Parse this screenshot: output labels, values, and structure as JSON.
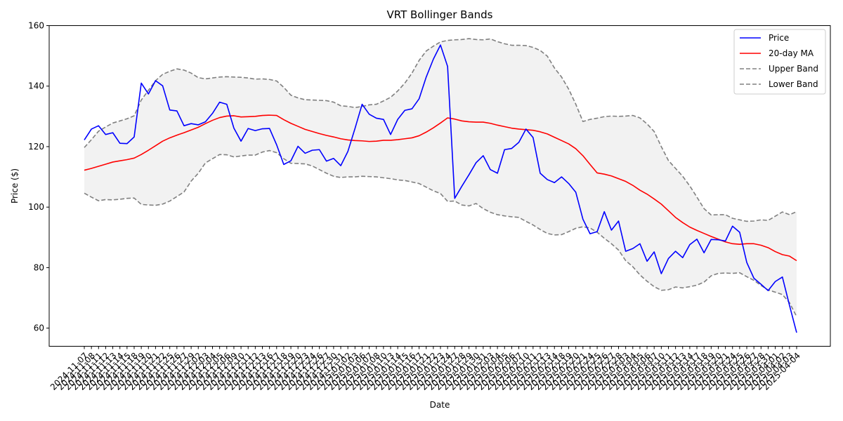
{
  "chart_data": {
    "type": "line",
    "title": "VRT Bollinger Bands",
    "xlabel": "Date",
    "ylabel": "Price ($)",
    "ylim": [
      54,
      160
    ],
    "yticks": [
      60,
      80,
      100,
      120,
      140,
      160
    ],
    "grid": false,
    "legend_position": "top-right",
    "x": [
      "2024-11-07",
      "2024-11-08",
      "2024-11-11",
      "2024-11-12",
      "2024-11-13",
      "2024-11-14",
      "2024-11-15",
      "2024-11-18",
      "2024-11-19",
      "2024-11-20",
      "2024-11-21",
      "2024-11-22",
      "2024-11-25",
      "2024-11-26",
      "2024-11-27",
      "2024-11-29",
      "2024-12-02",
      "2024-12-03",
      "2024-12-04",
      "2024-12-05",
      "2024-12-06",
      "2024-12-09",
      "2024-12-10",
      "2024-12-11",
      "2024-12-12",
      "2024-12-13",
      "2024-12-16",
      "2024-12-17",
      "2024-12-18",
      "2024-12-19",
      "2024-12-20",
      "2024-12-23",
      "2024-12-24",
      "2024-12-26",
      "2024-12-27",
      "2024-12-30",
      "2024-12-31",
      "2025-01-02",
      "2025-01-03",
      "2025-01-06",
      "2025-01-07",
      "2025-01-08",
      "2025-01-10",
      "2025-01-13",
      "2025-01-14",
      "2025-01-15",
      "2025-01-16",
      "2025-01-17",
      "2025-01-21",
      "2025-01-22",
      "2025-01-23",
      "2025-01-24",
      "2025-01-27",
      "2025-01-28",
      "2025-01-29",
      "2025-01-30",
      "2025-01-31",
      "2025-02-03",
      "2025-02-04",
      "2025-02-05",
      "2025-02-06",
      "2025-02-07",
      "2025-02-10",
      "2025-02-11",
      "2025-02-12",
      "2025-02-13",
      "2025-02-14",
      "2025-02-18",
      "2025-02-19",
      "2025-02-20",
      "2025-02-21",
      "2025-02-24",
      "2025-02-25",
      "2025-02-26",
      "2025-02-27",
      "2025-02-28",
      "2025-03-03",
      "2025-03-04",
      "2025-03-05",
      "2025-03-06",
      "2025-03-07",
      "2025-03-10",
      "2025-03-11",
      "2025-03-12",
      "2025-03-13",
      "2025-03-14",
      "2025-03-17",
      "2025-03-18",
      "2025-03-19",
      "2025-03-20",
      "2025-03-21",
      "2025-03-24",
      "2025-03-25",
      "2025-03-26",
      "2025-03-27",
      "2025-03-28",
      "2025-03-31",
      "2025-04-01",
      "2025-04-02",
      "2025-04-03",
      "2025-04-04"
    ],
    "series": [
      {
        "name": "Price",
        "color": "#0000ff",
        "style": "solid",
        "values": [
          122.2,
          125.8,
          126.9,
          124.0,
          124.6,
          121.1,
          121.0,
          123.2,
          141.0,
          137.4,
          141.8,
          140.1,
          132.1,
          131.8,
          126.9,
          127.6,
          127.2,
          128.2,
          131.0,
          134.7,
          134.0,
          126.1,
          121.8,
          126.0,
          125.3,
          125.9,
          126.0,
          120.6,
          114.1,
          115.3,
          120.1,
          117.8,
          118.8,
          119.0,
          115.2,
          116.1,
          113.7,
          118.4,
          126.0,
          134.0,
          130.7,
          129.4,
          129.0,
          124.0,
          129.0,
          132.0,
          132.5,
          135.8,
          143.0,
          148.9,
          153.6,
          146.5,
          102.9,
          106.9,
          110.7,
          114.7,
          117.0,
          112.4,
          111.2,
          119.0,
          119.4,
          121.4,
          125.8,
          123.0,
          111.2,
          109.1,
          108.1,
          110.0,
          107.8,
          104.9,
          96.0,
          91.2,
          91.9,
          98.5,
          92.4,
          95.4,
          85.4,
          86.3,
          87.9,
          82.1,
          85.2,
          78.0,
          83.0,
          85.4,
          83.3,
          87.6,
          89.4,
          84.9,
          89.3,
          89.2,
          88.8,
          93.7,
          91.7,
          81.7,
          76.5,
          74.5,
          72.4,
          75.4,
          76.9,
          67.5,
          58.5
        ]
      },
      {
        "name": "20-day MA",
        "color": "#ff0000",
        "style": "solid",
        "values": [
          112.2,
          112.8,
          113.5,
          114.2,
          114.9,
          115.3,
          115.7,
          116.2,
          117.4,
          118.8,
          120.3,
          121.8,
          122.9,
          123.8,
          124.6,
          125.5,
          126.4,
          127.6,
          128.7,
          129.6,
          130.1,
          130.2,
          129.8,
          129.9,
          130.0,
          130.3,
          130.4,
          130.3,
          128.9,
          127.7,
          126.7,
          125.7,
          125.0,
          124.3,
          123.7,
          123.2,
          122.6,
          122.2,
          122.0,
          121.9,
          121.7,
          121.8,
          122.1,
          122.1,
          122.3,
          122.6,
          122.9,
          123.6,
          124.8,
          126.2,
          127.8,
          129.5,
          129.1,
          128.5,
          128.2,
          128.1,
          128.1,
          127.7,
          127.1,
          126.6,
          126.1,
          125.8,
          125.6,
          125.4,
          124.9,
          124.2,
          123.1,
          122.0,
          120.9,
          119.3,
          117.0,
          114.1,
          111.3,
          110.9,
          110.3,
          109.4,
          108.5,
          107.2,
          105.6,
          104.3,
          102.7,
          101.0,
          98.8,
          96.6,
          94.9,
          93.4,
          92.3,
          91.3,
          90.3,
          89.4,
          88.5,
          87.9,
          87.7,
          87.9,
          87.9,
          87.4,
          86.6,
          85.3,
          84.3,
          83.8,
          82.3
        ]
      },
      {
        "name": "Upper Band",
        "color": "#808080",
        "style": "dashed",
        "values": [
          119.7,
          122.3,
          125.1,
          126.5,
          127.8,
          128.5,
          129.2,
          130.2,
          135.4,
          138.6,
          141.8,
          143.9,
          144.9,
          145.7,
          145.3,
          144.3,
          142.8,
          142.4,
          142.7,
          143.0,
          143.1,
          143.0,
          142.9,
          142.7,
          142.3,
          142.4,
          142.2,
          141.7,
          139.6,
          137.0,
          136.1,
          135.5,
          135.4,
          135.3,
          135.2,
          134.7,
          133.5,
          133.3,
          132.9,
          133.3,
          133.8,
          134.0,
          135.1,
          136.3,
          138.4,
          141.0,
          144.3,
          148.5,
          151.6,
          153.2,
          154.6,
          155.1,
          155.3,
          155.4,
          155.7,
          155.4,
          155.3,
          155.6,
          154.7,
          154.0,
          153.5,
          153.5,
          153.4,
          152.8,
          151.8,
          149.9,
          146.0,
          143.0,
          139.0,
          134.0,
          128.3,
          129.0,
          129.4,
          129.9,
          130.1,
          130.0,
          130.1,
          130.3,
          129.5,
          127.5,
          125.0,
          120.0,
          115.4,
          112.8,
          110.2,
          107.0,
          103.3,
          99.5,
          97.4,
          97.5,
          97.5,
          96.3,
          95.8,
          95.3,
          95.4,
          95.8,
          95.6,
          97.0,
          98.4,
          97.5,
          98.5
        ]
      },
      {
        "name": "Lower Band",
        "color": "#808080",
        "style": "dashed",
        "values": [
          104.6,
          103.3,
          102.1,
          102.5,
          102.4,
          102.6,
          102.9,
          103.0,
          100.9,
          100.7,
          100.6,
          101.0,
          102.0,
          103.5,
          105.0,
          108.6,
          111.2,
          114.6,
          116.0,
          117.4,
          117.3,
          116.6,
          116.9,
          117.2,
          117.2,
          118.2,
          118.7,
          118.0,
          116.0,
          114.5,
          114.4,
          114.3,
          113.6,
          112.4,
          111.2,
          110.2,
          109.8,
          110.0,
          110.0,
          110.2,
          110.1,
          110.0,
          109.7,
          109.4,
          109.0,
          108.8,
          108.3,
          107.8,
          106.6,
          105.4,
          104.5,
          101.9,
          102.0,
          100.7,
          100.4,
          101.2,
          99.5,
          98.3,
          97.5,
          97.1,
          96.8,
          96.6,
          95.3,
          94.1,
          92.6,
          91.3,
          90.8,
          90.9,
          91.9,
          93.0,
          93.5,
          93.1,
          91.7,
          89.7,
          87.9,
          85.8,
          82.3,
          80.3,
          77.6,
          75.5,
          73.7,
          72.5,
          72.7,
          73.6,
          73.3,
          73.7,
          74.2,
          75.2,
          77.3,
          78.1,
          78.2,
          78.1,
          78.3,
          77.0,
          75.8,
          74.1,
          72.6,
          71.9,
          71.1,
          68.4,
          63.8
        ]
      }
    ]
  }
}
